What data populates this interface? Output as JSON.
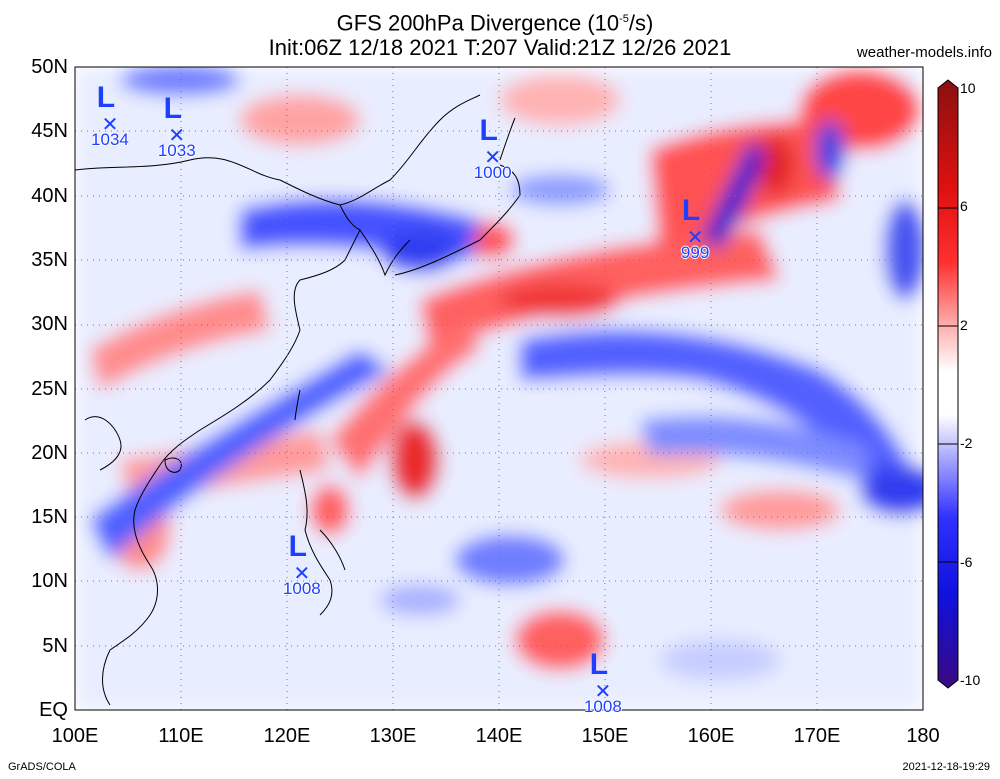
{
  "header": {
    "title_line1": "GFS 200hPa Divergence (10",
    "title_exp": "-5",
    "title_unit": "/s)",
    "title_line2": "Init:06Z 12/18 2021 T:207 Valid:21Z 12/26 2021",
    "site": "weather-models.info"
  },
  "footer": {
    "left": "GrADS/COLA",
    "right": "2021-12-18-19:29"
  },
  "map": {
    "y_axis": [
      "50N",
      "45N",
      "40N",
      "35N",
      "30N",
      "25N",
      "20N",
      "15N",
      "10N",
      "5N",
      "EQ"
    ],
    "x_axis": [
      "100E",
      "110E",
      "120E",
      "130E",
      "140E",
      "150E",
      "160E",
      "170E",
      "180"
    ],
    "lat_range": [
      0,
      50
    ],
    "lon_range": [
      100,
      180
    ],
    "grid": "dotted",
    "colorbar_ticks": [
      "10",
      "6",
      "2",
      "-2",
      "-6",
      "-10"
    ],
    "colorbar_values": [
      10,
      6,
      2,
      -2,
      -6,
      -10
    ],
    "colors": {
      "positive": "#ff0000",
      "negative": "#0000ff",
      "low_marker": "#1e3fff"
    },
    "lows": [
      {
        "letter": "L",
        "value": "1034",
        "lon": 103.3,
        "lat": 45.5
      },
      {
        "letter": "L",
        "value": "1033",
        "lon": 109.6,
        "lat": 44.6
      },
      {
        "letter": "L",
        "value": "1000",
        "lon": 139.4,
        "lat": 42.9
      },
      {
        "letter": "L",
        "value": "999",
        "lon": 158.5,
        "lat": 36.7
      },
      {
        "letter": "L",
        "value": "1008",
        "lon": 121.4,
        "lat": 10.6
      },
      {
        "letter": "L",
        "value": "1008",
        "lon": 149.8,
        "lat": 1.4
      }
    ]
  }
}
